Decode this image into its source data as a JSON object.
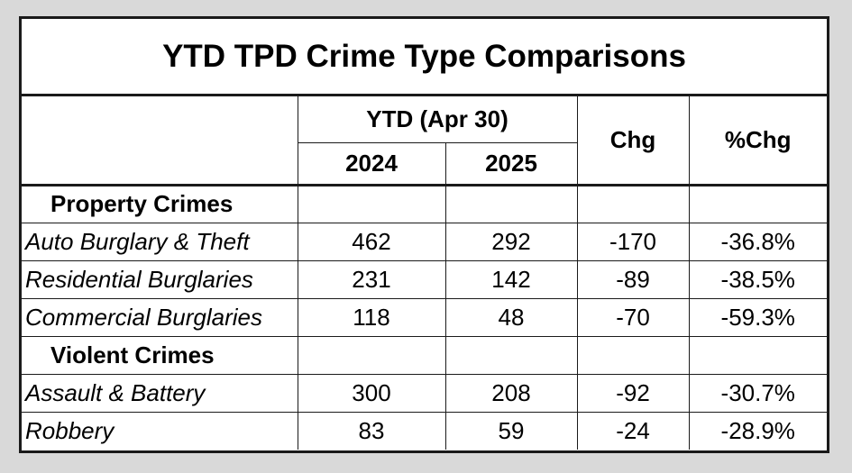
{
  "chart_data": {
    "type": "table",
    "title": "YTD TPD Crime Type Comparisons",
    "header": {
      "group_label": "YTD (Apr 30)",
      "year_a": "2024",
      "year_b": "2025",
      "chg": "Chg",
      "pct_chg": "%Chg"
    },
    "sections": [
      {
        "name": "Property Crimes",
        "rows": [
          {
            "label": "Auto Burglary & Theft",
            "y2024": "462",
            "y2025": "292",
            "chg": "-170",
            "pct": "-36.8%"
          },
          {
            "label": "Residential Burglaries",
            "y2024": "231",
            "y2025": "142",
            "chg": "-89",
            "pct": "-38.5%"
          },
          {
            "label": "Commercial Burglaries",
            "y2024": "118",
            "y2025": "48",
            "chg": "-70",
            "pct": "-59.3%"
          }
        ]
      },
      {
        "name": "Violent Crimes",
        "rows": [
          {
            "label": "Assault & Battery",
            "y2024": "300",
            "y2025": "208",
            "chg": "-92",
            "pct": "-30.7%"
          },
          {
            "label": "Robbery",
            "y2024": "83",
            "y2025": "59",
            "chg": "-24",
            "pct": "-28.9%"
          }
        ]
      }
    ]
  }
}
